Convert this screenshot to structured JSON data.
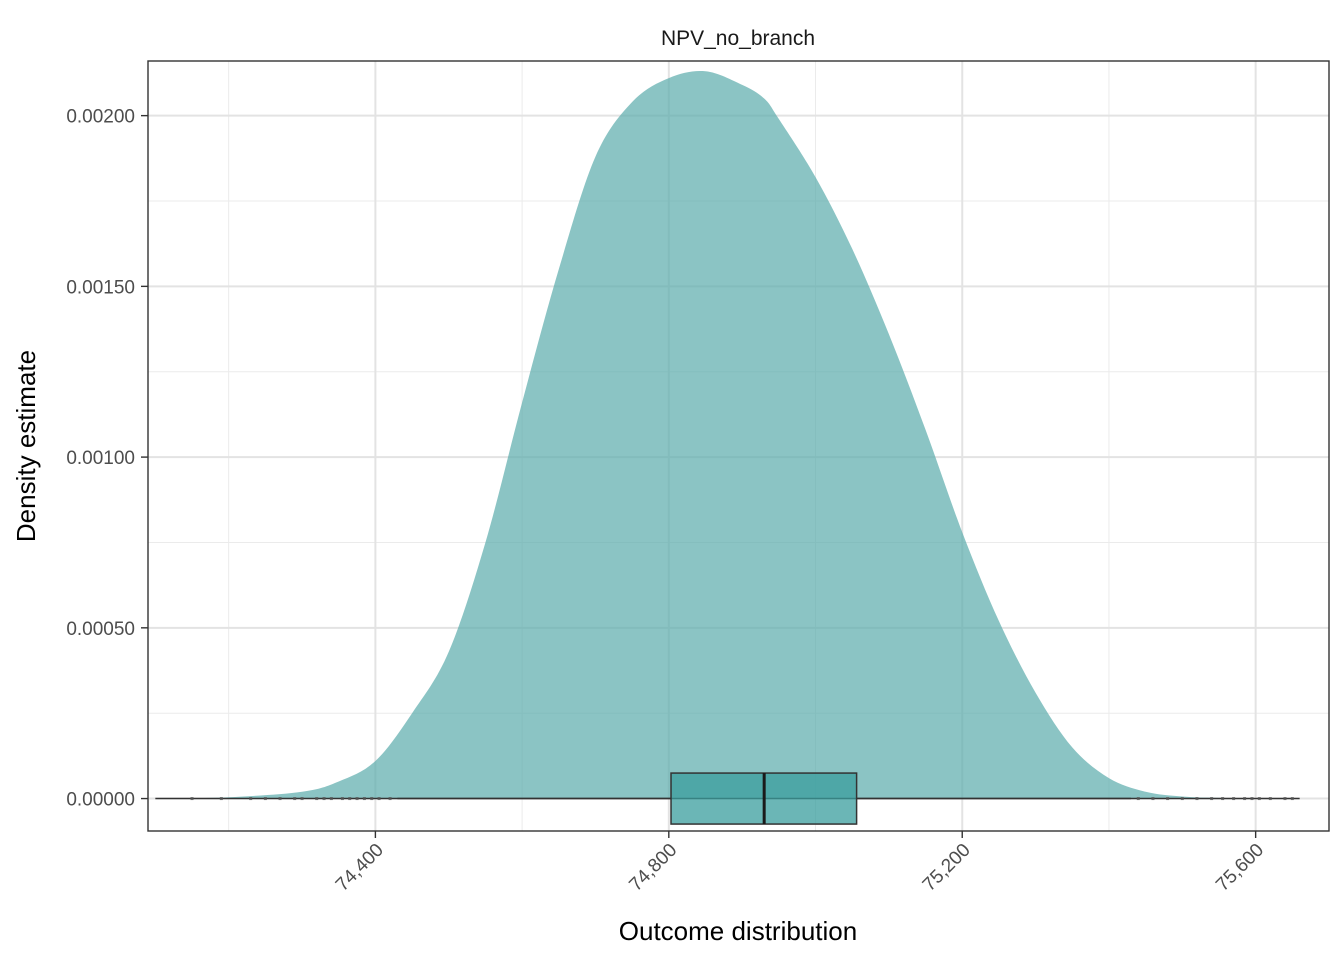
{
  "chart_data": {
    "type": "area",
    "title": "NPV_no_branch",
    "xlabel": "Outcome distribution",
    "ylabel": "Density estimate",
    "xlim": [
      74090,
      75700
    ],
    "ylim": [
      -9.5e-05,
      0.00216
    ],
    "x_ticks": [
      74400,
      74800,
      75200,
      75600
    ],
    "x_tick_labels": [
      "74,400",
      "74,800",
      "75,200",
      "75,600"
    ],
    "y_ticks": [
      0,
      0.0005,
      0.001,
      0.0015,
      0.002
    ],
    "y_tick_labels": [
      "0.00000",
      "0.00050",
      "0.00100",
      "0.00150",
      "0.00200"
    ],
    "grid": true,
    "fill_color": "#5aabab",
    "density": {
      "x": [
        74100,
        74200,
        74300,
        74350,
        74400,
        74450,
        74500,
        74550,
        74600,
        74650,
        74700,
        74750,
        74800,
        74850,
        74900,
        74930,
        74950,
        75000,
        75050,
        75100,
        75150,
        75200,
        75250,
        75300,
        75350,
        75400,
        75450,
        75500,
        75550,
        75600,
        75650
      ],
      "y": [
        0.0,
        4e-06,
        2e-05,
        5e-05,
        0.00011,
        0.00025,
        0.00043,
        0.00075,
        0.00116,
        0.00155,
        0.00188,
        0.00204,
        0.00211,
        0.00213,
        0.00209,
        0.00205,
        0.00199,
        0.00182,
        0.00161,
        0.00136,
        0.00108,
        0.00078,
        0.00052,
        0.00031,
        0.00015,
        6e-05,
        2e-05,
        6e-06,
        2e-06,
        0.0,
        0.0
      ]
    },
    "boxplot": {
      "min": 74100,
      "q1": 74803,
      "median": 74930,
      "q3": 75056,
      "max": 75660,
      "whisker_low": 74430,
      "whisker_high": 75430,
      "fill_color": "#3a9e9e",
      "outliers_low": [
        74150,
        74190,
        74230,
        74250,
        74270,
        74290,
        74300,
        74320,
        74330,
        74340,
        74355,
        74365,
        74375,
        74385,
        74395,
        74405,
        74420
      ],
      "outliers_high": [
        75440,
        75460,
        75480,
        75500,
        75520,
        75540,
        75555,
        75570,
        75585,
        75595,
        75605,
        75620,
        75640,
        75650
      ]
    }
  }
}
